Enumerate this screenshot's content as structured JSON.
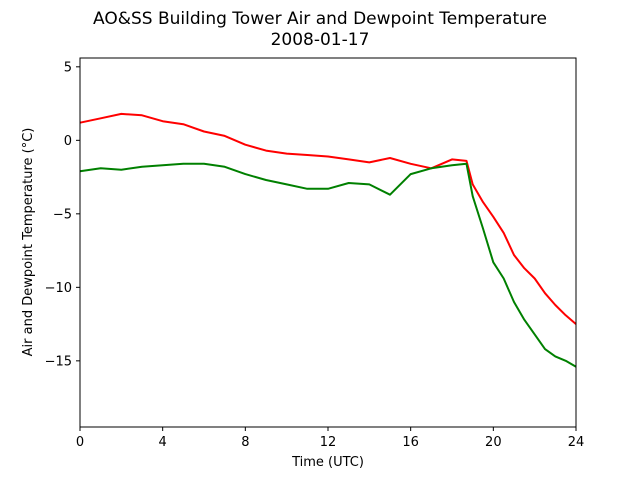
{
  "chart_data": {
    "type": "line",
    "title": "AO&SS Building Tower Air and Dewpoint Temperature",
    "subtitle": "2008-01-17",
    "xlabel": "Time (UTC)",
    "ylabel": "Air and Dewpoint Temperature (°C)",
    "xlim": [
      0,
      24
    ],
    "ylim": [
      -19.5,
      5.6
    ],
    "xticks": [
      0,
      4,
      8,
      12,
      16,
      20,
      24
    ],
    "yticks": [
      5,
      0,
      -5,
      -10,
      -15
    ],
    "grid": false,
    "legend": "none",
    "x": [
      0,
      1,
      2,
      3,
      4,
      5,
      6,
      7,
      8,
      9,
      10,
      11,
      12,
      13,
      14,
      15,
      16,
      17,
      18,
      18.7,
      19,
      19.5,
      20,
      20.5,
      21,
      21.5,
      22,
      22.5,
      23,
      23.5,
      24
    ],
    "series": [
      {
        "color": "#ff0000",
        "values": [
          1.2,
          1.5,
          1.8,
          1.7,
          1.3,
          1.1,
          0.6,
          0.3,
          -0.3,
          -0.7,
          -0.9,
          -1.0,
          -1.1,
          -1.3,
          -1.5,
          -1.2,
          -1.6,
          -1.9,
          -1.3,
          -1.4,
          -3.0,
          -4.2,
          -5.2,
          -6.3,
          -7.8,
          -8.7,
          -9.4,
          -10.4,
          -11.2,
          -11.9,
          -12.5
        ]
      },
      {
        "color": "#008000",
        "values": [
          -2.1,
          -1.9,
          -2.0,
          -1.8,
          -1.7,
          -1.6,
          -1.6,
          -1.8,
          -2.3,
          -2.7,
          -3.0,
          -3.3,
          -3.3,
          -2.9,
          -3.0,
          -3.7,
          -2.3,
          -1.9,
          -1.7,
          -1.6,
          -3.8,
          -6.0,
          -8.3,
          -9.4,
          -11.0,
          -12.2,
          -13.2,
          -14.2,
          -14.7,
          -15.0,
          -15.4
        ]
      }
    ]
  }
}
